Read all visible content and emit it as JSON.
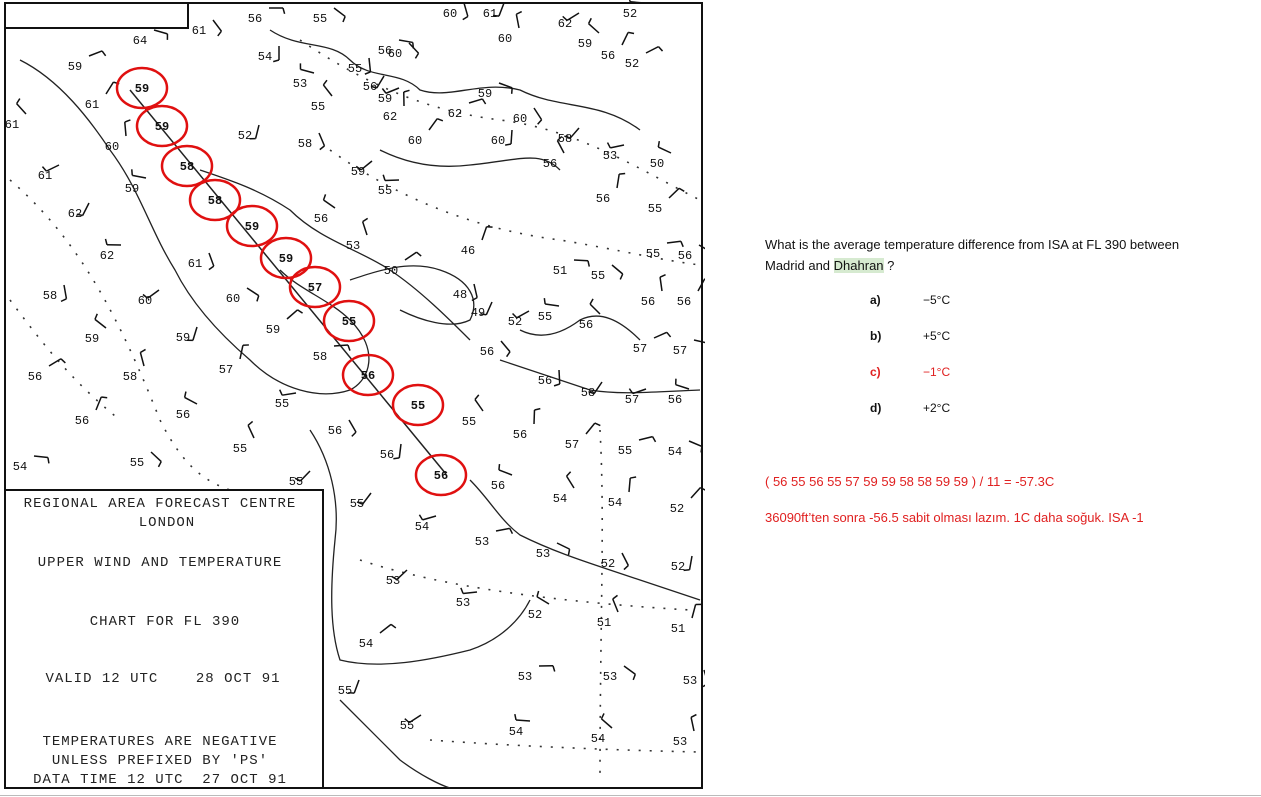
{
  "map": {
    "legend": [
      "REGIONAL AREA FORECAST CENTRE",
      "LONDON",
      "UPPER WIND AND TEMPERATURE",
      "CHART FOR FL 390",
      "VALID 12 UTC    28 OCT 91",
      "TEMPERATURES ARE NEGATIVE",
      "UNLESS PREFIXED BY 'PS'",
      "DATA TIME 12 UTC  27 OCT 91"
    ],
    "route_temps": [
      "59",
      "59",
      "58",
      "58",
      "59",
      "59",
      "57",
      "55",
      "56",
      "55",
      "56"
    ],
    "labels": [
      "56",
      "55",
      "60",
      "61",
      "62",
      "52",
      "59",
      "60",
      "56",
      "52",
      "56",
      "60",
      "55",
      "56",
      "59",
      "53",
      "55",
      "62",
      "60",
      "62",
      "59",
      "60",
      "60",
      "58",
      "53",
      "50",
      "56",
      "56",
      "55",
      "55",
      "56",
      "58",
      "52",
      "59",
      "55",
      "56",
      "53",
      "46",
      "50",
      "51",
      "55",
      "48",
      "49",
      "52",
      "55",
      "56",
      "56",
      "56",
      "57",
      "57",
      "56",
      "56",
      "58",
      "57",
      "56",
      "55",
      "56",
      "57",
      "55",
      "54",
      "56",
      "56",
      "55",
      "55",
      "56",
      "55",
      "57",
      "59",
      "58",
      "60",
      "61",
      "59",
      "60",
      "62",
      "59",
      "58",
      "56",
      "56",
      "54",
      "55",
      "58",
      "62",
      "61",
      "59",
      "61",
      "60",
      "61",
      "59",
      "64",
      "61",
      "54",
      "55",
      "54",
      "56",
      "54",
      "54",
      "52",
      "53",
      "53",
      "52",
      "52",
      "53",
      "53",
      "52",
      "51",
      "51",
      "54",
      "53",
      "53",
      "53",
      "55",
      "55",
      "54",
      "54",
      "53"
    ]
  },
  "question": {
    "text": "What is the average temperature difference from ISA at FL 390 between Madrid and ",
    "highlight": "Dhahran",
    "end": " ?",
    "correct_index": 2,
    "options": [
      {
        "letter": "a)",
        "text": "−5°C"
      },
      {
        "letter": "b)",
        "text": "+5°C"
      },
      {
        "letter": "c)",
        "text": "−1°C"
      },
      {
        "letter": "d)",
        "text": "+2°C"
      }
    ]
  },
  "notes": [
    "( 56 55 56 55 57 59 59 58 58 59 59 ) / 11 = -57.3C",
    "36090ft’ten sonra -56.5 sabit olması lazım. 1C daha soğuk. ISA -1"
  ]
}
